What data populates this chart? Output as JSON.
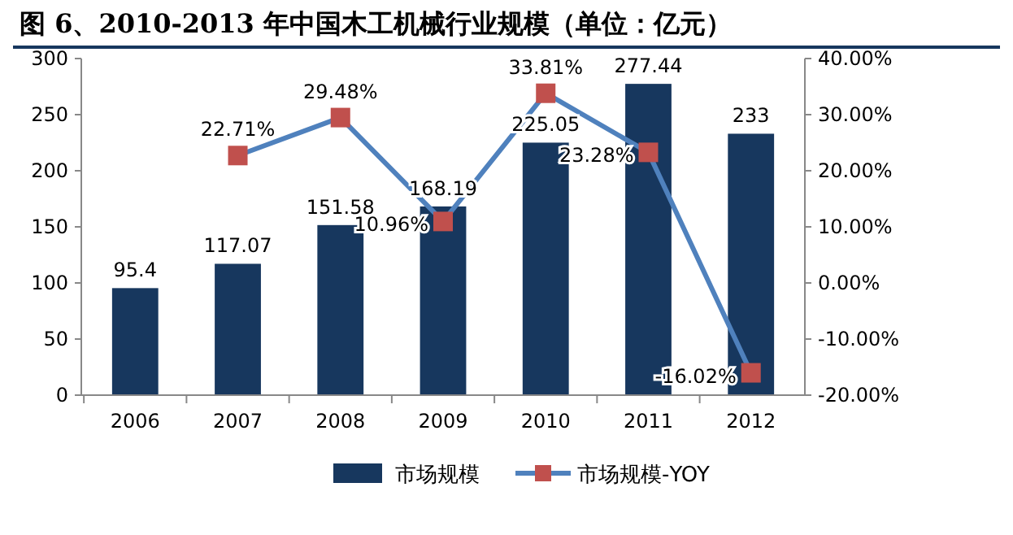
{
  "chart_data": {
    "type": "bar",
    "title": "图 6、2010-2013 年中国木工机械行业规模（单位：亿元）",
    "categories": [
      "2006",
      "2007",
      "2008",
      "2009",
      "2010",
      "2011",
      "2012"
    ],
    "series": [
      {
        "name": "市场规模",
        "color": "#17375e",
        "values": [
          95.4,
          117.07,
          151.58,
          168.19,
          225.05,
          277.44,
          233
        ],
        "value_labels": [
          "95.4",
          "117.07",
          "151.58",
          "168.19",
          "225.05",
          "277.44",
          "233"
        ]
      },
      {
        "name": "市场规模-YOY",
        "type": "line",
        "axis": "y2",
        "color": "#4f81bd",
        "marker": "square",
        "values": [
          null,
          22.71,
          29.48,
          10.96,
          33.81,
          23.28,
          -16.02
        ],
        "value_labels": [
          null,
          "22.71%",
          "29.48%",
          "10.96%",
          "33.81%",
          "23.28%",
          "-16.02%"
        ]
      }
    ],
    "ylim": [
      0,
      300
    ],
    "yticks": [
      0,
      50,
      100,
      150,
      200,
      250,
      300
    ],
    "y2lim": [
      -20,
      40
    ],
    "y2ticks": [
      {
        "value": -20,
        "label": "-20.00%"
      },
      {
        "value": -10,
        "label": "-10.00%"
      },
      {
        "value": 0,
        "label": "0.00%"
      },
      {
        "value": 10,
        "label": "10.00%"
      },
      {
        "value": 20,
        "label": "20.00%"
      },
      {
        "value": 30,
        "label": "30.00%"
      },
      {
        "value": 40,
        "label": "40.00%"
      }
    ],
    "grid": false,
    "legend": "bottom"
  }
}
